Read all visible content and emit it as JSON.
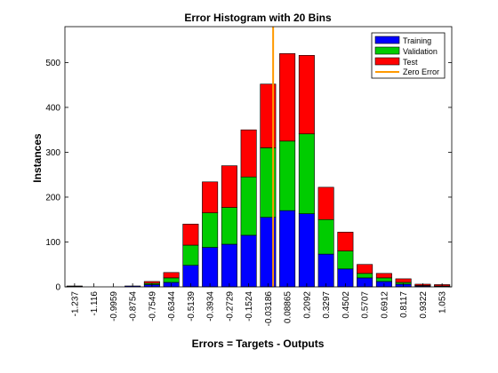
{
  "chart_data": {
    "type": "bar",
    "stacked": true,
    "title": "Error Histogram with 20 Bins",
    "xlabel": "Errors = Targets - Outputs",
    "ylabel": "Instances",
    "categories": [
      "-1.237",
      "-1.116",
      "-0.9959",
      "-0.8754",
      "-0.7549",
      "-0.6344",
      "-0.5139",
      "-0.3934",
      "-0.2729",
      "-0.1524",
      "-0.03186",
      "0.08865",
      "0.2092",
      "0.3297",
      "0.4502",
      "0.5707",
      "0.6912",
      "0.8117",
      "0.9322",
      "1.053"
    ],
    "series": [
      {
        "name": "Training",
        "color": "#0000ff",
        "values": [
          1,
          0,
          0,
          2,
          5,
          10,
          48,
          88,
          95,
          115,
          155,
          170,
          163,
          73,
          40,
          20,
          12,
          6,
          2,
          1
        ]
      },
      {
        "name": "Validation",
        "color": "#00cc00",
        "values": [
          0,
          0,
          0,
          0,
          3,
          10,
          45,
          77,
          82,
          130,
          155,
          155,
          178,
          77,
          40,
          10,
          8,
          4,
          1,
          1
        ]
      },
      {
        "name": "Test",
        "color": "#ff0000",
        "values": [
          1,
          0,
          0,
          0,
          4,
          12,
          47,
          69,
          93,
          105,
          142,
          195,
          175,
          72,
          42,
          20,
          10,
          8,
          3,
          3
        ]
      }
    ],
    "zero_error": {
      "name": "Zero Error",
      "color": "#ff9900",
      "x": 0
    },
    "ylim": [
      0,
      580
    ],
    "yticks": [
      0,
      100,
      200,
      300,
      400,
      500
    ],
    "legend_position": "top-right",
    "grid": false
  }
}
